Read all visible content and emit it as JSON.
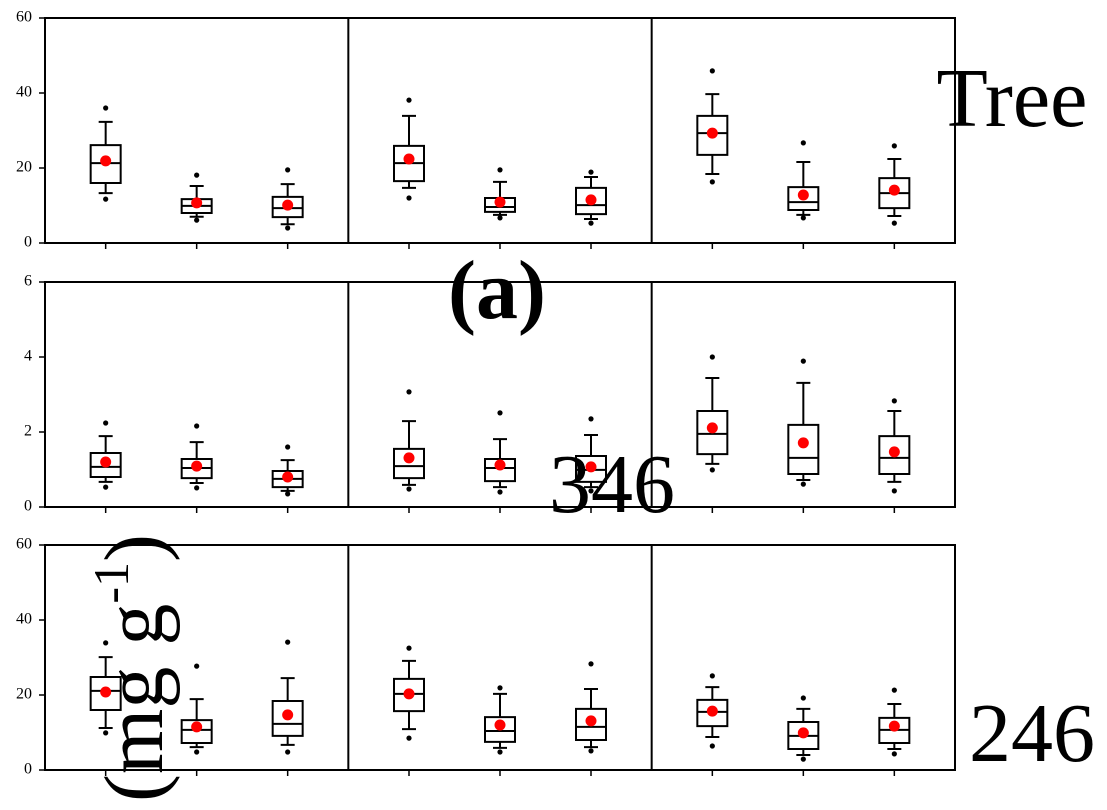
{
  "chart_data": [
    {
      "type": "box",
      "ylim": [
        0,
        60
      ],
      "yticks": [
        0,
        20,
        40,
        60
      ],
      "mean_color": "#ff0000",
      "panels": [
        {
          "boxes": [
            {
              "whislo": 13.3,
              "q1": 16,
              "med": 21.3,
              "q3": 26.1,
              "whishi": 32.3,
              "fliers": [
                11.7,
                36
              ],
              "mean": 21.9
            },
            {
              "whislo": 7,
              "q1": 8,
              "med": 9.9,
              "q3": 11.7,
              "whishi": 15.2,
              "fliers": [
                6.1,
                18.1
              ],
              "mean": 10.7
            },
            {
              "whislo": 5,
              "q1": 6.9,
              "med": 9.3,
              "q3": 12.3,
              "whishi": 15.7,
              "fliers": [
                4,
                19.5
              ],
              "mean": 10.1
            }
          ]
        },
        {
          "boxes": [
            {
              "whislo": 14.7,
              "q1": 16.5,
              "med": 21.3,
              "q3": 25.9,
              "whishi": 33.9,
              "fliers": [
                12,
                38.1
              ],
              "mean": 22.4
            },
            {
              "whislo": 7.5,
              "q1": 8.3,
              "med": 9.6,
              "q3": 12,
              "whishi": 16.3,
              "fliers": [
                6.7,
                19.5
              ],
              "mean": 10.9
            },
            {
              "whislo": 6.4,
              "q1": 7.7,
              "med": 10.1,
              "q3": 14.7,
              "whishi": 17.6,
              "fliers": [
                5.3,
                18.9
              ],
              "mean": 11.5
            }
          ]
        },
        {
          "boxes": [
            {
              "whislo": 18.4,
              "q1": 23.5,
              "med": 29.3,
              "q3": 33.9,
              "whishi": 39.7,
              "fliers": [
                16.3,
                45.9
              ],
              "mean": 29.3
            },
            {
              "whislo": 7.5,
              "q1": 8.8,
              "med": 10.9,
              "q3": 14.9,
              "whishi": 21.6,
              "fliers": [
                6.7,
                26.7
              ],
              "mean": 12.8
            },
            {
              "whislo": 7.2,
              "q1": 9.3,
              "med": 13.3,
              "q3": 17.3,
              "whishi": 22.4,
              "fliers": [
                5.3,
                25.9
              ],
              "mean": 14.1
            }
          ]
        }
      ]
    },
    {
      "type": "box",
      "ylim": [
        0,
        6
      ],
      "yticks": [
        0,
        2,
        4,
        6
      ],
      "mean_color": "#ff0000",
      "panels": [
        {
          "boxes": [
            {
              "whislo": 0.67,
              "q1": 0.8,
              "med": 1.07,
              "q3": 1.44,
              "whishi": 1.89,
              "fliers": [
                0.53,
                2.24
              ],
              "mean": 1.2
            },
            {
              "whislo": 0.64,
              "q1": 0.77,
              "med": 1.04,
              "q3": 1.28,
              "whishi": 1.73,
              "fliers": [
                0.51,
                2.16
              ],
              "mean": 1.09
            },
            {
              "whislo": 0.43,
              "q1": 0.53,
              "med": 0.75,
              "q3": 0.96,
              "whishi": 1.25,
              "fliers": [
                0.35,
                1.6
              ],
              "mean": 0.8
            }
          ]
        },
        {
          "boxes": [
            {
              "whislo": 0.59,
              "q1": 0.77,
              "med": 1.09,
              "q3": 1.55,
              "whishi": 2.29,
              "fliers": [
                0.48,
                3.07
              ],
              "mean": 1.31
            },
            {
              "whislo": 0.53,
              "q1": 0.69,
              "med": 1.04,
              "q3": 1.28,
              "whishi": 1.81,
              "fliers": [
                0.4,
                2.51
              ],
              "mean": 1.12
            },
            {
              "whislo": 0.53,
              "q1": 0.67,
              "med": 0.99,
              "q3": 1.36,
              "whishi": 1.92,
              "fliers": [
                0.43,
                2.35
              ],
              "mean": 1.07
            }
          ]
        },
        {
          "boxes": [
            {
              "whislo": 1.15,
              "q1": 1.41,
              "med": 1.95,
              "q3": 2.56,
              "whishi": 3.44,
              "fliers": [
                0.99,
                4
              ],
              "mean": 2.11
            },
            {
              "whislo": 0.72,
              "q1": 0.88,
              "med": 1.31,
              "q3": 2.19,
              "whishi": 3.31,
              "fliers": [
                0.61,
                3.89
              ],
              "mean": 1.71
            },
            {
              "whislo": 0.67,
              "q1": 0.88,
              "med": 1.31,
              "q3": 1.89,
              "whishi": 2.56,
              "fliers": [
                0.43,
                2.83
              ],
              "mean": 1.47
            }
          ]
        }
      ]
    },
    {
      "type": "box",
      "ylim": [
        0,
        60
      ],
      "yticks": [
        0,
        20,
        40,
        60
      ],
      "mean_color": "#ff0000",
      "panels": [
        {
          "boxes": [
            {
              "whislo": 11.2,
              "q1": 16,
              "med": 21.1,
              "q3": 24.8,
              "whishi": 30.1,
              "fliers": [
                9.9,
                33.9
              ],
              "mean": 20.8
            },
            {
              "whislo": 6.1,
              "q1": 7.2,
              "med": 10.7,
              "q3": 13.3,
              "whishi": 18.9,
              "fliers": [
                4.8,
                27.7
              ],
              "mean": 11.5
            },
            {
              "whislo": 6.7,
              "q1": 9.1,
              "med": 12.3,
              "q3": 18.4,
              "whishi": 24.5,
              "fliers": [
                4.8,
                34.1
              ],
              "mean": 14.7
            }
          ]
        },
        {
          "boxes": [
            {
              "whislo": 10.9,
              "q1": 15.7,
              "med": 20.3,
              "q3": 24.3,
              "whishi": 29.1,
              "fliers": [
                8.5,
                32.5
              ],
              "mean": 20.3
            },
            {
              "whislo": 5.9,
              "q1": 7.5,
              "med": 10.4,
              "q3": 14.1,
              "whishi": 20.3,
              "fliers": [
                4.8,
                21.9
              ],
              "mean": 12
            },
            {
              "whislo": 6.1,
              "q1": 8,
              "med": 11.5,
              "q3": 16.3,
              "whishi": 21.6,
              "fliers": [
                5.1,
                28.3
              ],
              "mean": 13.1
            }
          ]
        },
        {
          "boxes": [
            {
              "whislo": 8.8,
              "q1": 11.7,
              "med": 15.5,
              "q3": 18.7,
              "whishi": 22.1,
              "fliers": [
                6.4,
                25.1
              ],
              "mean": 15.7
            },
            {
              "whislo": 4,
              "q1": 5.6,
              "med": 9.1,
              "q3": 12.8,
              "whishi": 16.3,
              "fliers": [
                2.9,
                19.2
              ],
              "mean": 9.9
            },
            {
              "whislo": 5.6,
              "q1": 7.2,
              "med": 10.7,
              "q3": 13.9,
              "whishi": 17.6,
              "fliers": [
                4.3,
                21.3
              ],
              "mean": 11.7
            }
          ]
        }
      ]
    }
  ],
  "annotations": {
    "tree": "Tree",
    "panel_label": "(a)",
    "number_a": "346",
    "number_b": "246",
    "ylabel": {
      "open": "(mg g",
      "sup": "-1",
      "close": ")"
    }
  }
}
